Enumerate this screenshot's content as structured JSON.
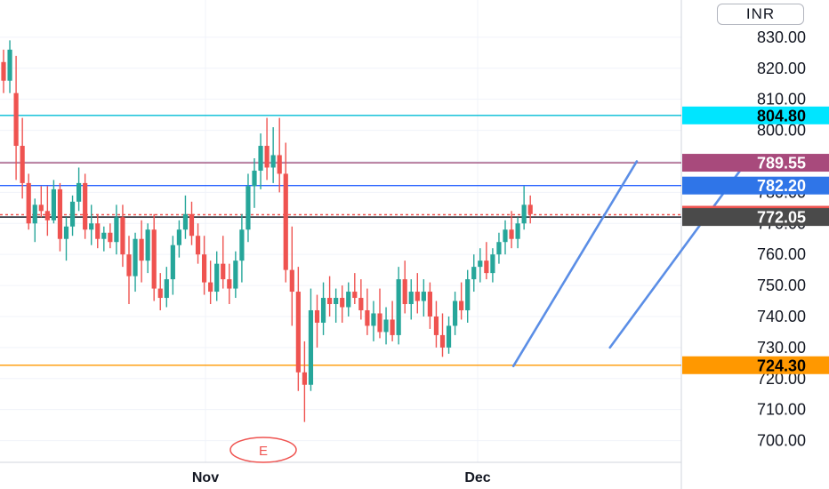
{
  "currency": "INR",
  "event_marker": "E",
  "chart_data": {
    "type": "candlestick",
    "y_axis": {
      "position": "right",
      "ylim": [
        693,
        842
      ],
      "ticks": [
        "700.00",
        "710.00",
        "720.00",
        "730.00",
        "740.00",
        "750.00",
        "760.00",
        "770.00",
        "780.00",
        "790.00",
        "800.00",
        "810.00",
        "820.00",
        "830.00"
      ]
    },
    "x_axis": {
      "labels": [
        "Nov",
        "Dec"
      ]
    },
    "grid": true,
    "horizontal_levels": [
      {
        "value": 804.8,
        "label": "804.80",
        "color": "#00bcd4",
        "tag_color": "#00e5ff",
        "tag_text_color": "#000000"
      },
      {
        "value": 789.55,
        "label": "789.55",
        "color": "#9c4a78",
        "tag_color": "#a84a7c",
        "tag_text_color": "#ffffff"
      },
      {
        "value": 782.2,
        "label": "782.20",
        "color": "#2962ff",
        "tag_color": "#2f75e8",
        "tag_text_color": "#ffffff"
      },
      {
        "value": 772.8,
        "label": "772.80",
        "color": "#ef5350",
        "tag_color": "#ef5350",
        "tag_text_color": "#ffffff",
        "dashed": true
      },
      {
        "value": 772.05,
        "label": "772.05",
        "color": "#131722",
        "tag_color": "#4a4a4a",
        "tag_text_color": "#ffffff"
      },
      {
        "value": 724.3,
        "label": "724.30",
        "color": "#ff9800",
        "tag_color": "#ff9800",
        "tag_text_color": "#000000"
      }
    ],
    "channel": {
      "upper": [
        [
          37,
          724
        ],
        [
          54,
          790
        ]
      ],
      "lower": [
        [
          44,
          730
        ],
        [
          63,
          788
        ]
      ]
    },
    "candles": [
      [
        822,
        826,
        812,
        816
      ],
      [
        816,
        829,
        812,
        826
      ],
      [
        812,
        824,
        784,
        795
      ],
      [
        795,
        804,
        778,
        783
      ],
      [
        783,
        786,
        768,
        770
      ],
      [
        770,
        778,
        764,
        776
      ],
      [
        776,
        782,
        772,
        774
      ],
      [
        774,
        782,
        766,
        771
      ],
      [
        771,
        784,
        770,
        781
      ],
      [
        781,
        783,
        761,
        765
      ],
      [
        765,
        772,
        758,
        769
      ],
      [
        769,
        779,
        766,
        777
      ],
      [
        777,
        788,
        774,
        783
      ],
      [
        783,
        786,
        765,
        768
      ],
      [
        768,
        776,
        763,
        770
      ],
      [
        770,
        773,
        762,
        765
      ],
      [
        765,
        769,
        761,
        767
      ],
      [
        767,
        770,
        762,
        764
      ],
      [
        764,
        776,
        760,
        772
      ],
      [
        772,
        776,
        756,
        760
      ],
      [
        760,
        766,
        744,
        753
      ],
      [
        753,
        767,
        748,
        765
      ],
      [
        765,
        771,
        751,
        758
      ],
      [
        758,
        770,
        754,
        768
      ],
      [
        768,
        773,
        745,
        749
      ],
      [
        749,
        754,
        742,
        746
      ],
      [
        746,
        756,
        743,
        752
      ],
      [
        752,
        766,
        747,
        763
      ],
      [
        763,
        771,
        759,
        768
      ],
      [
        768,
        779,
        765,
        773
      ],
      [
        773,
        777,
        763,
        766
      ],
      [
        766,
        770,
        757,
        760
      ],
      [
        760,
        766,
        747,
        751
      ],
      [
        751,
        758,
        744,
        748
      ],
      [
        748,
        761,
        745,
        757
      ],
      [
        757,
        766,
        749,
        752
      ],
      [
        752,
        757,
        744,
        749
      ],
      [
        749,
        761,
        746,
        758
      ],
      [
        758,
        773,
        751,
        768
      ],
      [
        768,
        786,
        764,
        782
      ],
      [
        782,
        791,
        775,
        787
      ],
      [
        787,
        799,
        781,
        795
      ],
      [
        795,
        804,
        784,
        788
      ],
      [
        788,
        801,
        783,
        792
      ],
      [
        792,
        804,
        780,
        786
      ],
      [
        786,
        796,
        751,
        755
      ],
      [
        755,
        769,
        737,
        748
      ],
      [
        748,
        756,
        716,
        722
      ],
      [
        722,
        732,
        706,
        718
      ],
      [
        718,
        749,
        716,
        742
      ],
      [
        742,
        747,
        730,
        738
      ],
      [
        738,
        751,
        734,
        746
      ],
      [
        746,
        753,
        740,
        744
      ],
      [
        744,
        749,
        738,
        746
      ],
      [
        746,
        750,
        738,
        743
      ],
      [
        743,
        751,
        740,
        748
      ],
      [
        748,
        754,
        744,
        746
      ],
      [
        746,
        752,
        739,
        742
      ],
      [
        742,
        749,
        734,
        737
      ],
      [
        737,
        745,
        732,
        741
      ],
      [
        741,
        749,
        733,
        735
      ],
      [
        735,
        743,
        731,
        739
      ],
      [
        739,
        745,
        732,
        734
      ],
      [
        734,
        756,
        731,
        752
      ],
      [
        752,
        758,
        741,
        744
      ],
      [
        744,
        752,
        739,
        748
      ],
      [
        748,
        754,
        741,
        745
      ],
      [
        745,
        752,
        740,
        748
      ],
      [
        748,
        751,
        736,
        740
      ],
      [
        740,
        745,
        730,
        734
      ],
      [
        734,
        741,
        727,
        730
      ],
      [
        730,
        740,
        728,
        737
      ],
      [
        737,
        748,
        734,
        745
      ],
      [
        745,
        751,
        739,
        742
      ],
      [
        742,
        755,
        738,
        752
      ],
      [
        752,
        760,
        748,
        756
      ],
      [
        756,
        762,
        751,
        758
      ],
      [
        758,
        764,
        752,
        754
      ],
      [
        754,
        762,
        751,
        760
      ],
      [
        760,
        767,
        757,
        764
      ],
      [
        764,
        771,
        760,
        768
      ],
      [
        768,
        774,
        762,
        765
      ],
      [
        765,
        772,
        762,
        770
      ],
      [
        770,
        782,
        768,
        776
      ],
      [
        776,
        779,
        770,
        773
      ]
    ]
  }
}
